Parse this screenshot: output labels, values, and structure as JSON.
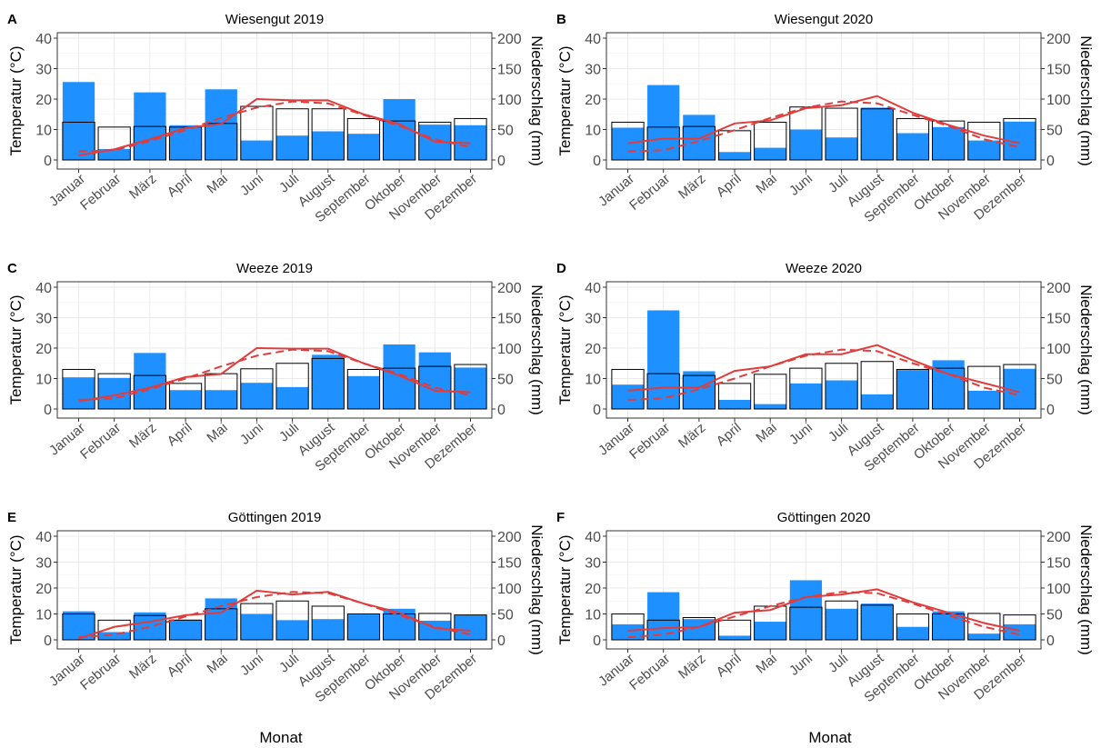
{
  "figure": {
    "xlabel": "Monat",
    "colors": {
      "precip_bar": "#1E90FF",
      "longterm_bar_outline": "#000000",
      "temperature_line": "#E03C3C"
    }
  },
  "chart_data": [
    {
      "type": "bar",
      "letter": "A",
      "title": "Wiesengut 2019",
      "categories": [
        "Januar",
        "Februar",
        "März",
        "April",
        "Mai",
        "Juni",
        "Juli",
        "August",
        "September",
        "Oktober",
        "November",
        "Dezember"
      ],
      "ylabel": "Temperatur (°C)",
      "ylim": [
        0,
        40
      ],
      "y_ticks": [
        0,
        10,
        20,
        30,
        40
      ],
      "y2label": "Niederschlag (mm)",
      "y2lim": [
        0,
        200
      ],
      "y2_ticks": [
        0,
        50,
        100,
        150,
        200
      ],
      "grid": true,
      "series": [
        {
          "kind": "bar-filled",
          "axis": "y2",
          "values": [
            128,
            18,
            111,
            57,
            116,
            32,
            40,
            47,
            43,
            100,
            58,
            57
          ]
        },
        {
          "kind": "bar-outline",
          "axis": "y2",
          "values": [
            62,
            54,
            55,
            54,
            60,
            88,
            84,
            84,
            68,
            64,
            62,
            68
          ]
        },
        {
          "kind": "line-solid",
          "axis": "y",
          "values": [
            1.5,
            3.5,
            6.8,
            10.5,
            11.8,
            20.0,
            19.6,
            19.6,
            15.0,
            11.8,
            6.0,
            5.5
          ]
        },
        {
          "kind": "line-dashed",
          "axis": "y",
          "values": [
            2.8,
            3.2,
            6.2,
            9.8,
            13.8,
            17.2,
            19.2,
            18.6,
            14.8,
            11.2,
            6.8,
            4.2
          ]
        }
      ]
    },
    {
      "type": "bar",
      "letter": "B",
      "title": "Wiesengut 2020",
      "categories": [
        "Januar",
        "Februar",
        "März",
        "April",
        "Mai",
        "Juni",
        "Juli",
        "August",
        "September",
        "Oktober",
        "November",
        "Dezember"
      ],
      "ylabel": "Temperatur (°C)",
      "ylim": [
        0,
        40
      ],
      "y_ticks": [
        0,
        10,
        20,
        30,
        40
      ],
      "y2label": "Niederschlag (mm)",
      "y2lim": [
        0,
        200
      ],
      "y2_ticks": [
        0,
        50,
        100,
        150,
        200
      ],
      "grid": true,
      "series": [
        {
          "kind": "bar-filled",
          "axis": "y2",
          "values": [
            53,
            123,
            74,
            13,
            20,
            50,
            37,
            86,
            44,
            54,
            32,
            63
          ]
        },
        {
          "kind": "bar-outline",
          "axis": "y2",
          "values": [
            62,
            54,
            55,
            48,
            62,
            87,
            85,
            84,
            68,
            64,
            62,
            68
          ]
        },
        {
          "kind": "line-solid",
          "axis": "y",
          "values": [
            5.5,
            7.0,
            7.0,
            12.0,
            13.0,
            17.0,
            18.0,
            21.0,
            15.5,
            11.5,
            8.0,
            5.5
          ]
        },
        {
          "kind": "line-dashed",
          "axis": "y",
          "values": [
            2.8,
            3.2,
            6.2,
            9.8,
            13.8,
            17.2,
            19.2,
            18.6,
            14.8,
            11.2,
            6.8,
            4.2
          ]
        }
      ]
    },
    {
      "type": "bar",
      "letter": "C",
      "title": "Weeze 2019",
      "categories": [
        "Januar",
        "Februar",
        "März",
        "April",
        "Mai",
        "Juni",
        "Juli",
        "August",
        "September",
        "Oktober",
        "November",
        "Dezember"
      ],
      "ylabel": "Temperatur (°C)",
      "ylim": [
        0,
        40
      ],
      "y_ticks": [
        0,
        10,
        20,
        30,
        40
      ],
      "y2label": "Niederschlag (mm)",
      "y2lim": [
        0,
        200
      ],
      "y2_ticks": [
        0,
        50,
        100,
        150,
        200
      ],
      "grid": true,
      "series": [
        {
          "kind": "bar-filled",
          "axis": "y2",
          "values": [
            52,
            51,
            92,
            31,
            31,
            43,
            36,
            89,
            54,
            106,
            93,
            68
          ]
        },
        {
          "kind": "bar-outline",
          "axis": "y2",
          "values": [
            65,
            58,
            55,
            42,
            58,
            66,
            75,
            83,
            65,
            67,
            70,
            73
          ]
        },
        {
          "kind": "line-solid",
          "axis": "y",
          "values": [
            2.5,
            4.5,
            7.0,
            10.5,
            11.5,
            20.0,
            19.8,
            19.8,
            15.0,
            11.0,
            6.0,
            5.5
          ]
        },
        {
          "kind": "line-dashed",
          "axis": "y",
          "values": [
            3.0,
            3.5,
            6.5,
            10.0,
            14.0,
            17.5,
            19.5,
            19.0,
            15.0,
            11.5,
            7.0,
            4.5
          ]
        }
      ]
    },
    {
      "type": "bar",
      "letter": "D",
      "title": "Weeze 2020",
      "categories": [
        "Januar",
        "Februar",
        "März",
        "April",
        "Mai",
        "Juni",
        "Juli",
        "August",
        "September",
        "Oktober",
        "November",
        "Dezember"
      ],
      "ylabel": "Temperatur (°C)",
      "ylim": [
        0,
        40
      ],
      "y_ticks": [
        0,
        10,
        20,
        30,
        40
      ],
      "y2label": "Niederschlag (mm)",
      "y2lim": [
        0,
        200
      ],
      "y2_ticks": [
        0,
        50,
        100,
        150,
        200
      ],
      "grid": true,
      "series": [
        {
          "kind": "bar-filled",
          "axis": "y2",
          "values": [
            40,
            162,
            62,
            15,
            8,
            42,
            47,
            24,
            64,
            80,
            30,
            66
          ]
        },
        {
          "kind": "bar-outline",
          "axis": "y2",
          "values": [
            65,
            58,
            55,
            42,
            57,
            67,
            75,
            78,
            65,
            67,
            70,
            73
          ]
        },
        {
          "kind": "line-solid",
          "axis": "y",
          "values": [
            6.0,
            7.0,
            7.0,
            12.5,
            14.0,
            18.0,
            18.0,
            21.0,
            16.0,
            11.5,
            8.5,
            5.5
          ]
        },
        {
          "kind": "line-dashed",
          "axis": "y",
          "values": [
            3.0,
            3.5,
            6.5,
            10.0,
            14.0,
            17.5,
            19.5,
            19.0,
            15.0,
            11.5,
            7.0,
            4.5
          ]
        }
      ]
    },
    {
      "type": "bar",
      "letter": "E",
      "title": "Göttingen 2019",
      "categories": [
        "Januar",
        "Februar",
        "März",
        "April",
        "Mai",
        "Juni",
        "Juli",
        "August",
        "September",
        "Oktober",
        "November",
        "Dezember"
      ],
      "ylabel": "Temperatur (°C)",
      "ylim": [
        0,
        40
      ],
      "y_ticks": [
        0,
        10,
        20,
        30,
        40
      ],
      "y2label": "Niederschlag (mm)",
      "y2lim": [
        0,
        200
      ],
      "y2_ticks": [
        0,
        50,
        100,
        150,
        200
      ],
      "grid": true,
      "series": [
        {
          "kind": "bar-filled",
          "axis": "y2",
          "values": [
            55,
            15,
            53,
            39,
            80,
            50,
            38,
            40,
            49,
            60,
            37,
            48
          ]
        },
        {
          "kind": "bar-outline",
          "axis": "y2",
          "values": [
            50,
            38,
            47,
            38,
            60,
            70,
            75,
            65,
            50,
            50,
            51,
            48
          ]
        },
        {
          "kind": "line-solid",
          "axis": "y",
          "values": [
            0.5,
            5.0,
            7.0,
            9.5,
            10.5,
            19.0,
            17.5,
            18.5,
            14.0,
            10.5,
            4.5,
            3.5
          ]
        },
        {
          "kind": "line-dashed",
          "axis": "y",
          "values": [
            1.0,
            2.0,
            5.0,
            9.0,
            13.0,
            16.5,
            18.5,
            18.0,
            14.0,
            9.5,
            5.0,
            2.0
          ]
        }
      ]
    },
    {
      "type": "bar",
      "letter": "F",
      "title": "Göttingen 2020",
      "categories": [
        "Januar",
        "Februar",
        "März",
        "April",
        "Mai",
        "Juni",
        "Juli",
        "August",
        "September",
        "Oktober",
        "November",
        "Dezember"
      ],
      "ylabel": "Temperatur (°C)",
      "ylim": [
        0,
        40
      ],
      "y_ticks": [
        0,
        10,
        20,
        30,
        40
      ],
      "y2label": "Niederschlag (mm)",
      "y2lim": [
        0,
        200
      ],
      "y2_ticks": [
        0,
        50,
        100,
        150,
        200
      ],
      "grid": true,
      "series": [
        {
          "kind": "bar-filled",
          "axis": "y2",
          "values": [
            30,
            92,
            40,
            8,
            35,
            115,
            60,
            70,
            25,
            55,
            12,
            30
          ]
        },
        {
          "kind": "bar-outline",
          "axis": "y2",
          "values": [
            50,
            38,
            43,
            38,
            65,
            63,
            75,
            67,
            50,
            50,
            51,
            48
          ]
        },
        {
          "kind": "line-solid",
          "axis": "y",
          "values": [
            3.5,
            4.5,
            5.0,
            10.5,
            11.5,
            16.5,
            17.5,
            19.5,
            14.5,
            10.5,
            6.5,
            3.5
          ]
        },
        {
          "kind": "line-dashed",
          "axis": "y",
          "values": [
            1.0,
            2.0,
            5.0,
            9.0,
            13.0,
            16.5,
            18.5,
            18.0,
            14.0,
            9.5,
            5.0,
            2.0
          ]
        }
      ]
    }
  ]
}
